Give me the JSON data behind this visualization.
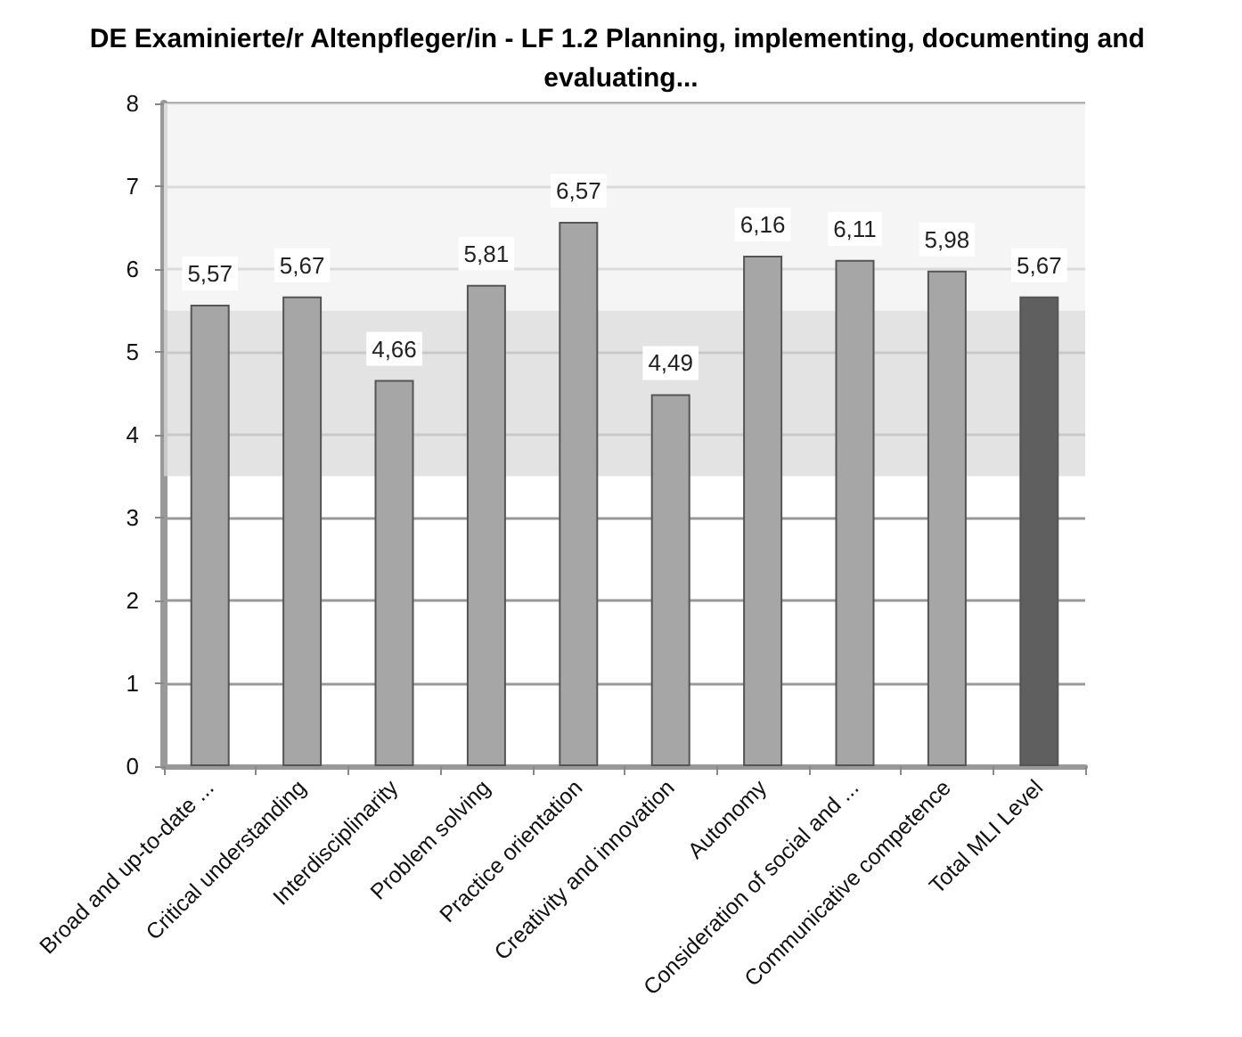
{
  "chart_data": {
    "type": "bar",
    "title": "DE Examinierte/r Altenpfleger/in - LF 1.2 Planning, implementing, documenting and evaluating...",
    "categories": [
      "Broad and up-to-date ...",
      "Critical understanding",
      "Interdisciplinarity",
      "Problem solving",
      "Practice orientation",
      "Creativity and innovation",
      "Autonomy",
      "Consideration of social and ...",
      "Communicative competence",
      "Total MLI Level"
    ],
    "values": [
      5.57,
      5.67,
      4.66,
      5.81,
      6.57,
      4.49,
      6.16,
      6.11,
      5.98,
      5.67
    ],
    "value_labels": [
      "5,57",
      "5,67",
      "4,66",
      "5,81",
      "6,57",
      "4,49",
      "6,16",
      "6,11",
      "5,98",
      "5,67"
    ],
    "colors": [
      "#a6a6a6",
      "#a6a6a6",
      "#a6a6a6",
      "#a6a6a6",
      "#a6a6a6",
      "#a6a6a6",
      "#a6a6a6",
      "#a6a6a6",
      "#a6a6a6",
      "#5f5f5f"
    ],
    "ylim": [
      0,
      8
    ],
    "yticks": [
      0,
      1,
      2,
      3,
      4,
      5,
      6,
      7,
      8
    ],
    "grid": "y",
    "bands": [
      {
        "axis": "y",
        "from": 3.5,
        "to": 5.5,
        "color": "#d9d9d9"
      },
      {
        "axis": "y",
        "from": 5.5,
        "to": 8,
        "color": "#f2f2f2"
      }
    ]
  }
}
